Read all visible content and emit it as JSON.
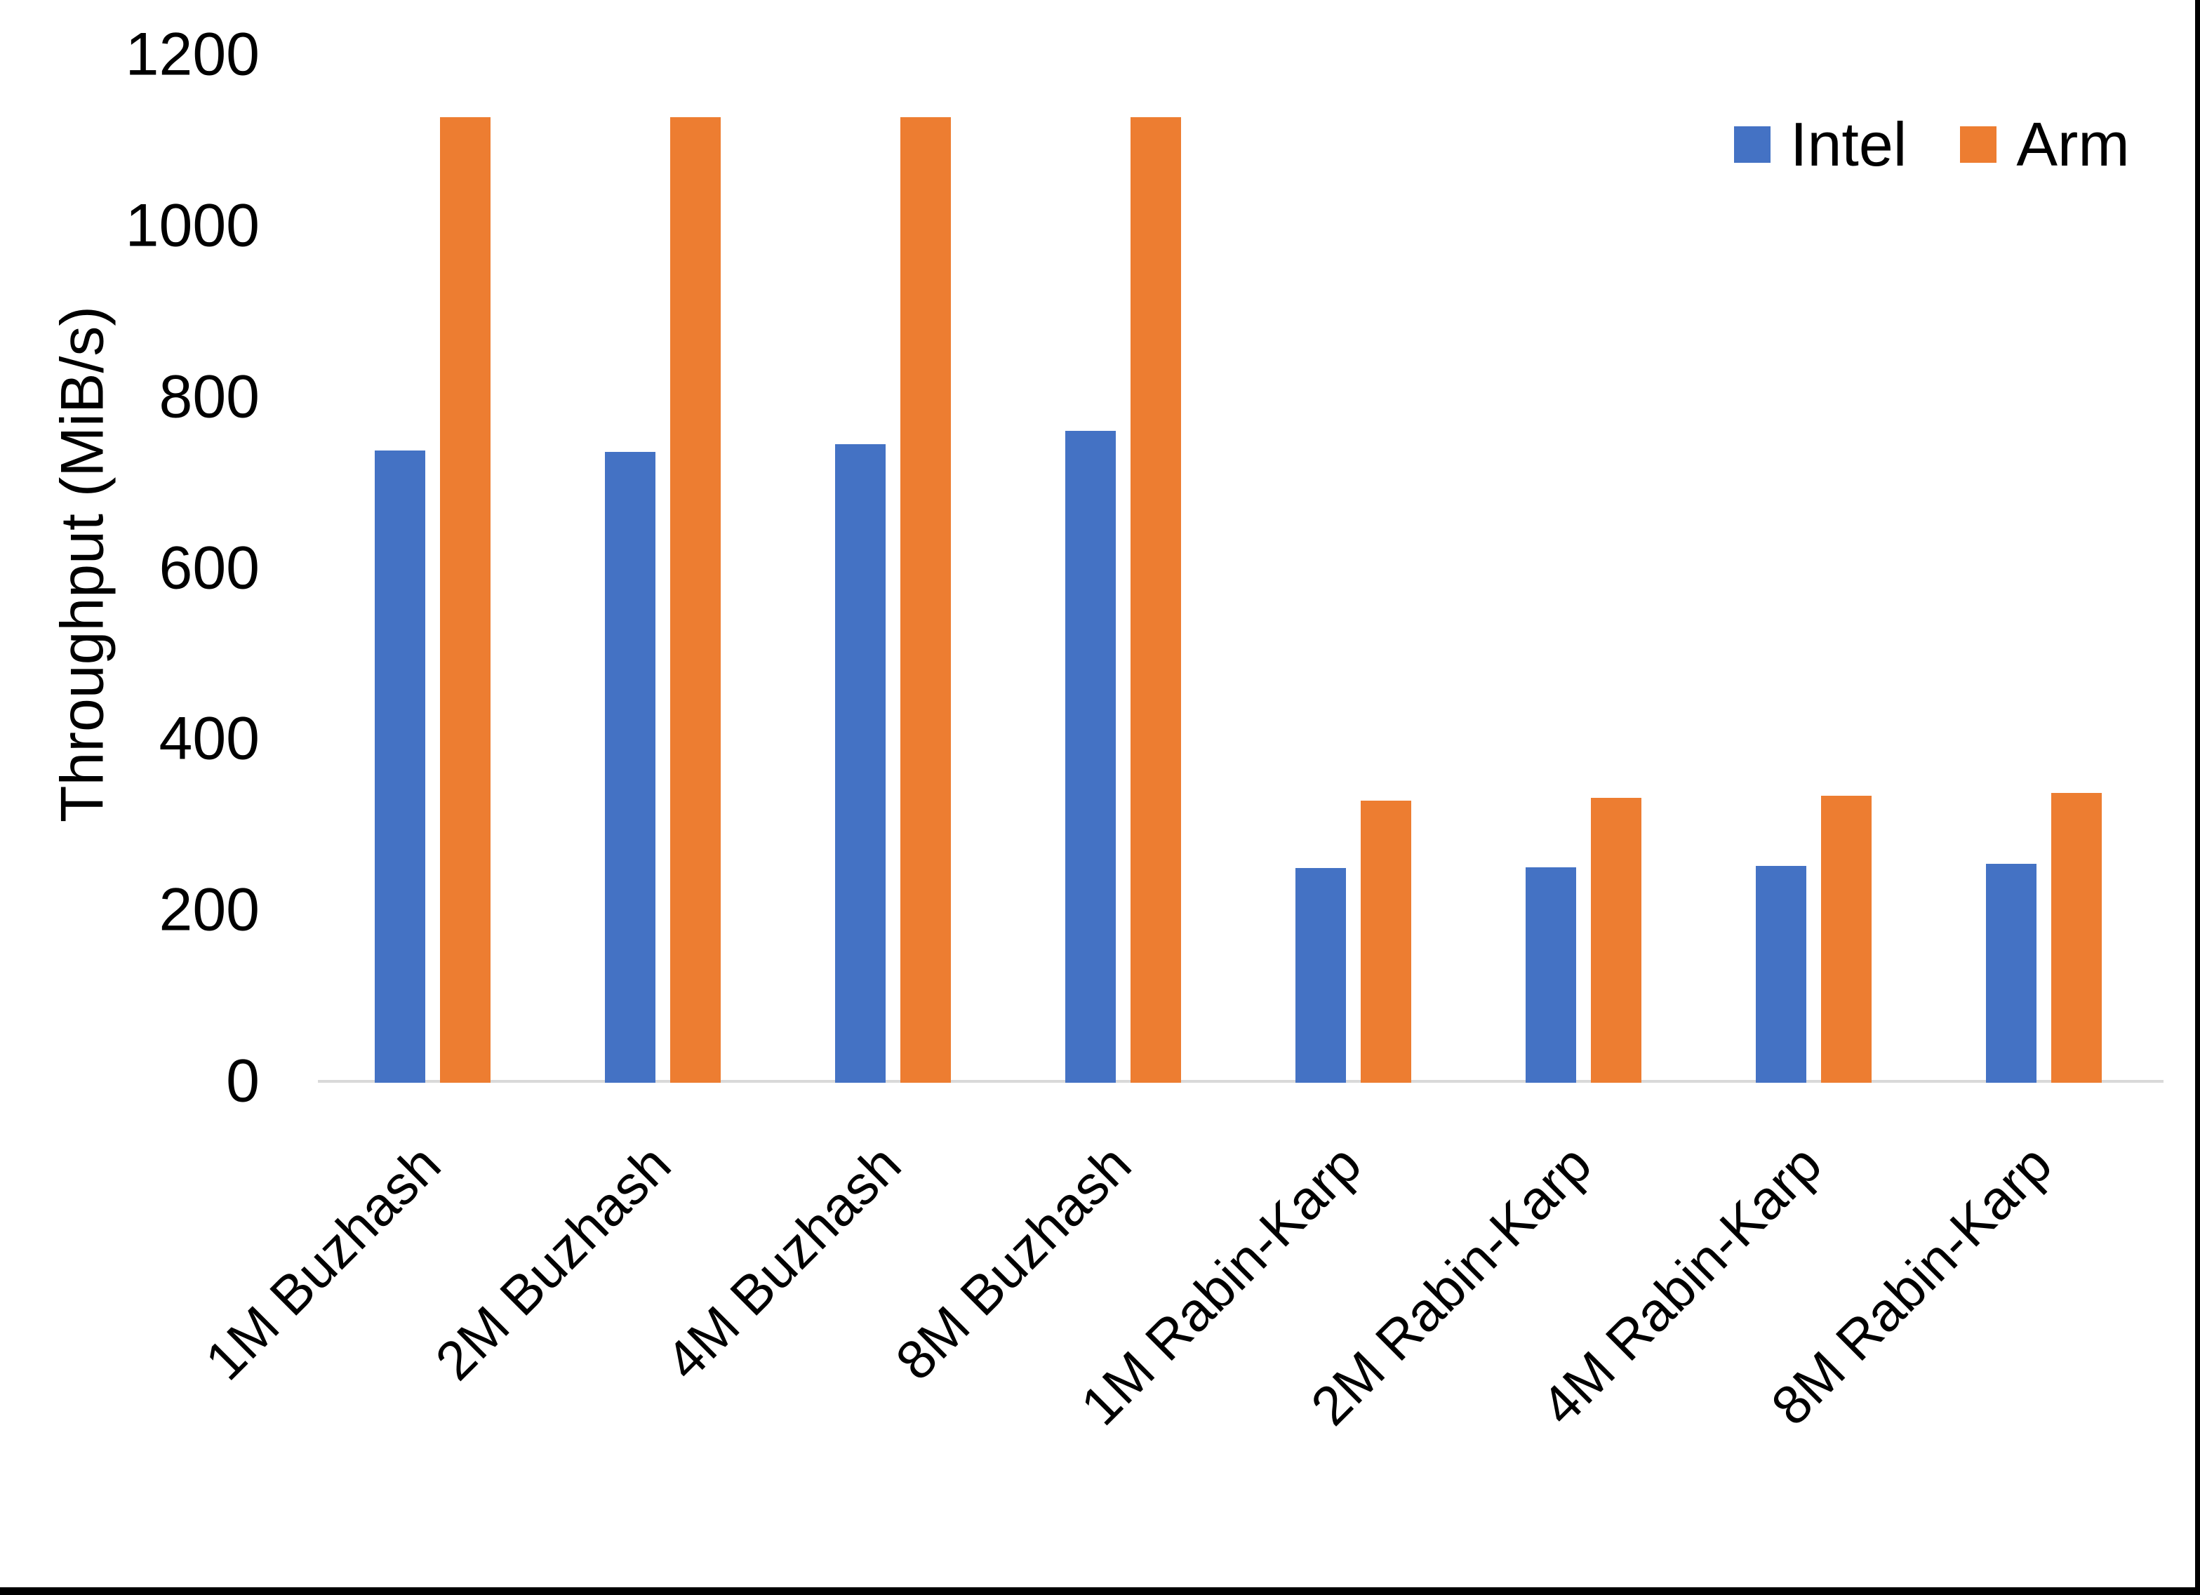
{
  "chart_data": {
    "type": "bar",
    "title": "",
    "categories": [
      "1M Buzhash",
      "2M Buzhash",
      "4M Buzhash",
      "8M Buzhash",
      "1M Rabin-Karp",
      "2M Rabin-Karp",
      "4M Rabin-Karp",
      "8M Rabin-Karp"
    ],
    "series": [
      {
        "name": "Intel",
        "color": "#4472C4",
        "values": [
          737,
          736,
          745,
          760,
          249,
          250,
          252,
          254
        ]
      },
      {
        "name": "Arm",
        "color": "#ED7D31",
        "values": [
          1127,
          1127,
          1127,
          1127,
          328,
          331,
          334,
          337
        ]
      }
    ],
    "xlabel": "",
    "ylabel": "Throughput (MiB/s)",
    "ylim": [
      0,
      1200
    ],
    "yticks": [
      0,
      200,
      400,
      600,
      800,
      1000,
      1200
    ],
    "grid": false,
    "legend_position": "top-right",
    "axis_line_color": "#D9D9D9",
    "text_color": "#000000"
  },
  "page": {
    "background": "#ffffff",
    "border_color": "#000000"
  }
}
